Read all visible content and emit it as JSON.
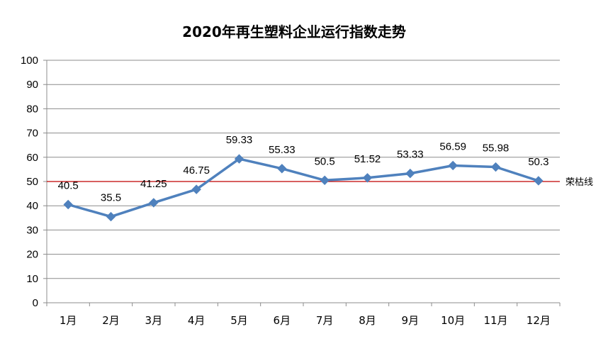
{
  "chart_data": {
    "type": "line",
    "title": "2020年再生塑料企业运行指数走势",
    "categories": [
      "1月",
      "2月",
      "3月",
      "4月",
      "5月",
      "6月",
      "7月",
      "8月",
      "9月",
      "10月",
      "11月",
      "12月"
    ],
    "values": [
      40.5,
      35.5,
      41.25,
      46.75,
      59.33,
      55.33,
      50.5,
      51.52,
      53.33,
      56.59,
      55.98,
      50.3
    ],
    "value_labels": [
      "40.5",
      "35.5",
      "41.25",
      "46.75",
      "59.33",
      "55.33",
      "50.5",
      "51.52",
      "53.33",
      "56.59",
      "55.98",
      "50.3"
    ],
    "yticks": [
      0,
      10,
      20,
      30,
      40,
      50,
      60,
      70,
      80,
      90,
      100
    ],
    "ylim": [
      0,
      100
    ],
    "grid": true,
    "reference_line": {
      "value": 50,
      "label": "荣枯线",
      "color": "#c00000"
    },
    "series_color": "#4f81bd"
  }
}
